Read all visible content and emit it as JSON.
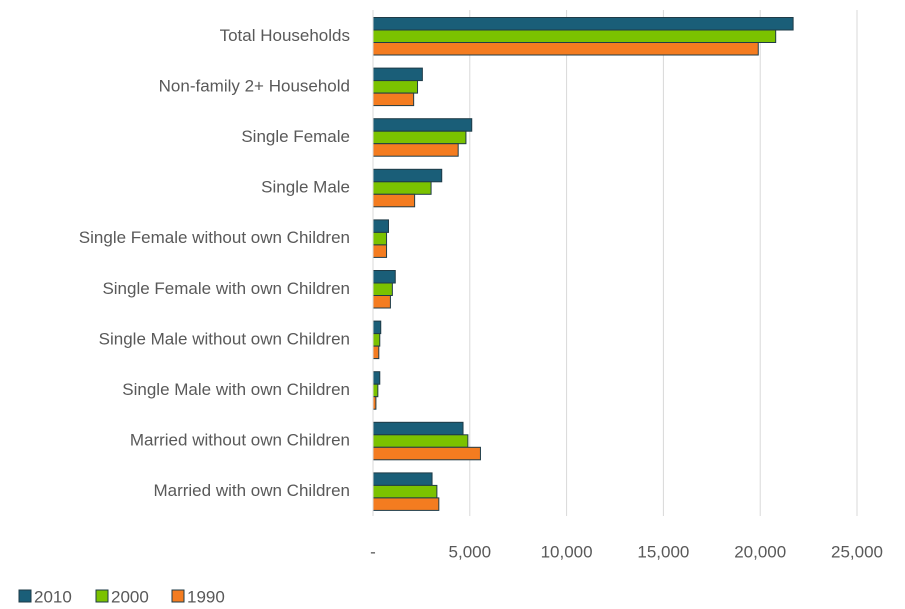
{
  "chart_data": {
    "type": "bar",
    "orientation": "horizontal",
    "categories": [
      "Total Households",
      "Non-family 2+ Household",
      "Single Female",
      "Single Male",
      "Single Female without own Children",
      "Single Female with own Children",
      "Single Male without own Children",
      "Single Male with own Children",
      "Married without own Children",
      "Married with own Children"
    ],
    "series": [
      {
        "name": "2010",
        "color": "#1a5e78",
        "values": [
          21700,
          2550,
          5100,
          3550,
          800,
          1150,
          400,
          350,
          4650,
          3050
        ]
      },
      {
        "name": "2000",
        "color": "#7bc200",
        "values": [
          20800,
          2300,
          4800,
          3000,
          700,
          1000,
          350,
          250,
          4900,
          3300
        ]
      },
      {
        "name": "1990",
        "color": "#f47c20",
        "values": [
          19900,
          2100,
          4400,
          2150,
          700,
          900,
          300,
          150,
          5550,
          3400
        ]
      }
    ],
    "xlim": [
      0,
      25000
    ],
    "xticks": [
      0,
      5000,
      10000,
      15000,
      20000,
      25000
    ],
    "xtick_labels": [
      "-",
      "5,000",
      "10,000",
      "15,000",
      "20,000",
      "25,000"
    ],
    "title": "",
    "xlabel": "",
    "ylabel": "",
    "grid": "vertical",
    "legend_position": "bottom-left"
  }
}
